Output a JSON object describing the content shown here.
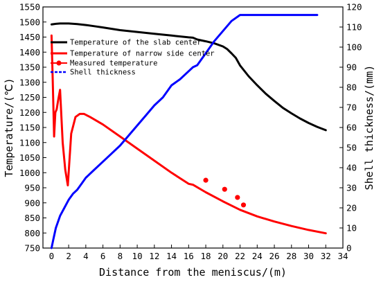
{
  "chart_data": {
    "type": "line",
    "xlabel": "Distance from the meniscus/(m)",
    "ylabel_left": "Temperature/(℃)",
    "ylabel_right": "Shell thickness/(mm)",
    "xlim": [
      -1,
      34
    ],
    "ylim_left": [
      750,
      1550
    ],
    "ylim_right": [
      0,
      120
    ],
    "x_ticks": [
      "0",
      "2",
      "4",
      "6",
      "8",
      "10",
      "12",
      "14",
      "16",
      "18",
      "20",
      "22",
      "24",
      "26",
      "28",
      "30",
      "32",
      "34"
    ],
    "y_left_ticks": [
      "750",
      "800",
      "850",
      "900",
      "950",
      "1000",
      "1050",
      "1100",
      "1150",
      "1200",
      "1250",
      "1300",
      "1350",
      "1400",
      "1450",
      "1500",
      "1550"
    ],
    "y_right_ticks": [
      "0",
      "10",
      "20",
      "30",
      "40",
      "50",
      "60",
      "70",
      "80",
      "90",
      "100",
      "110",
      "120"
    ],
    "grid": false,
    "legend_position": "top-left",
    "series": [
      {
        "name": "Temperature of the slab center",
        "axis": "left",
        "color": "#000000",
        "style": "solid",
        "x": [
          0,
          0.5,
          1,
          2,
          3,
          4,
          5,
          6,
          8,
          10,
          12,
          14,
          16,
          16.5,
          17,
          18,
          19,
          20,
          20.5,
          21,
          21.5,
          22,
          23,
          24,
          25,
          26,
          27,
          28,
          29,
          30,
          31,
          32
        ],
        "values": [
          1492,
          1494,
          1495,
          1495,
          1493,
          1490,
          1486,
          1482,
          1473,
          1467,
          1461,
          1455,
          1449,
          1448,
          1442,
          1436,
          1429,
          1419,
          1410,
          1396,
          1381,
          1356,
          1320,
          1290,
          1262,
          1238,
          1215,
          1197,
          1180,
          1165,
          1152,
          1141
        ]
      },
      {
        "name": "Temperature of narrow side center",
        "axis": "left",
        "color": "#ff0000",
        "style": "solid",
        "x": [
          0,
          0.15,
          0.3,
          0.45,
          0.6,
          0.8,
          1.0,
          1.3,
          1.6,
          1.9,
          2.3,
          2.8,
          3.3,
          3.8,
          4.5,
          6,
          8,
          10,
          12,
          14,
          16,
          16.5,
          18,
          20,
          22,
          24,
          26,
          28,
          30,
          32
        ],
        "values": [
          1455,
          1300,
          1120,
          1200,
          1210,
          1245,
          1275,
          1100,
          1010,
          958,
          1130,
          1185,
          1195,
          1195,
          1185,
          1160,
          1120,
          1080,
          1040,
          1000,
          963,
          960,
          935,
          905,
          877,
          855,
          838,
          823,
          810,
          799
        ]
      },
      {
        "name": "Measured temperature",
        "axis": "left",
        "color": "#ff0000",
        "style": "markers",
        "x": [
          18,
          20.2,
          21.7,
          22.4
        ],
        "values": [
          975,
          945,
          918,
          893
        ]
      },
      {
        "name": "Shell thickness",
        "axis": "right",
        "color": "#0000ff",
        "style": "solid",
        "x": [
          0,
          0.2,
          0.5,
          1,
          1.5,
          2,
          2.5,
          3,
          3.5,
          4,
          5,
          6,
          7,
          8,
          9,
          10,
          11,
          12,
          13,
          14,
          15,
          16,
          16.5,
          17,
          18,
          19,
          20,
          21,
          22,
          23,
          25,
          28,
          31
        ],
        "values": [
          0,
          4,
          10,
          16,
          20,
          24,
          27,
          29,
          32,
          35,
          39,
          43,
          47,
          51,
          56,
          61,
          66,
          71,
          75,
          81,
          84,
          88,
          90,
          91,
          97,
          103,
          108,
          113,
          116,
          116,
          116,
          116,
          116
        ]
      }
    ]
  }
}
